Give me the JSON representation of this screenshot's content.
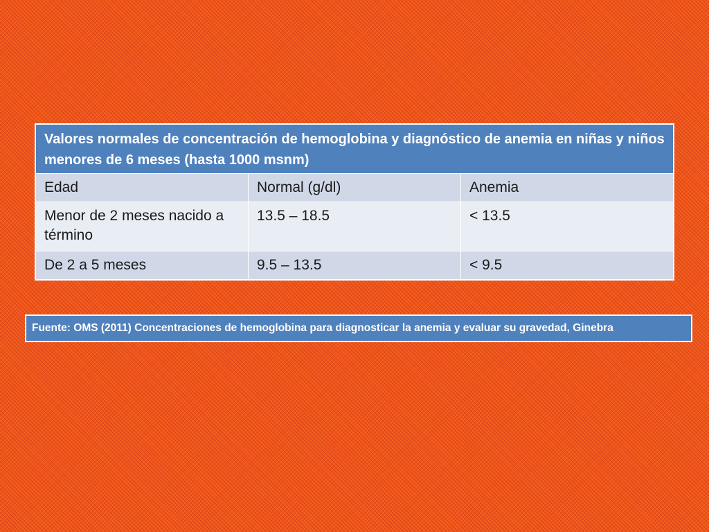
{
  "table": {
    "title": "Valores normales de concentración de hemoglobina y diagnóstico de anemia en niñas y niños menores de 6 meses (hasta 1000 msnm)",
    "headers": [
      "Edad",
      "Normal (g/dl)",
      "Anemia"
    ],
    "rows": [
      [
        "Menor de 2 meses nacido a término",
        "13.5 – 18.5",
        "< 13.5"
      ],
      [
        "De 2 a 5 meses",
        "9.5 – 13.5",
        "< 9.5"
      ]
    ]
  },
  "source": "Fuente: OMS (2011) Concentraciones de hemoglobina para diagnosticar la anemia y evaluar su gravedad, Ginebra",
  "colors": {
    "background": "#f0561a",
    "header_blue": "#4f81bd",
    "row_dark": "#d0d8e8",
    "row_light": "#e9edf4"
  }
}
